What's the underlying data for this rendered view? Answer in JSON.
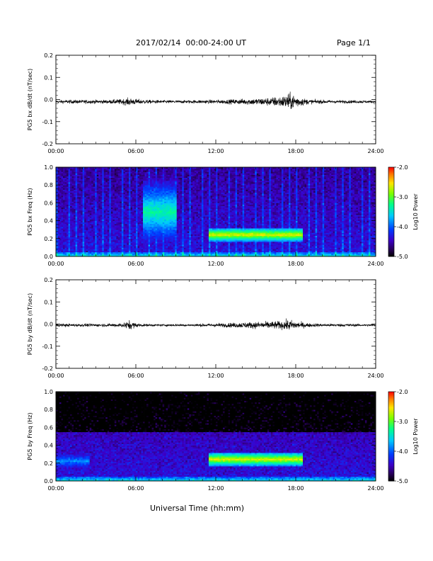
{
  "header": {
    "title": "2017/02/14  00:00-24:00 UT",
    "page": "Page 1/1"
  },
  "footer": {
    "xlabel": "Universal Time (hh:mm)"
  },
  "chart_data": [
    {
      "type": "line",
      "ylabel": "PG5 bx dB/dt (nT/sec)",
      "xlim": [
        0,
        24
      ],
      "ylim": [
        -0.2,
        0.2
      ],
      "x_tick_labels": [
        "00:00",
        "06:00",
        "12:00",
        "18:00",
        "24:00"
      ],
      "y_tick_labels": [
        "-0.2",
        "-0.1",
        "0.0",
        "0.1",
        "0.2"
      ],
      "series": [
        {
          "x": [
            0,
            1,
            2,
            3,
            4,
            5,
            5.5,
            6,
            6.5,
            7,
            8,
            9,
            10,
            11,
            12,
            13,
            14,
            15,
            16,
            17,
            17.5,
            18,
            18.5,
            19,
            20,
            21,
            22,
            23,
            24
          ],
          "envelope": [
            0.008,
            0.01,
            0.01,
            0.01,
            0.01,
            0.015,
            0.02,
            0.015,
            0.012,
            0.01,
            0.008,
            0.008,
            0.008,
            0.01,
            0.01,
            0.012,
            0.015,
            0.018,
            0.022,
            0.03,
            0.045,
            0.035,
            0.02,
            0.012,
            0.01,
            0.008,
            0.008,
            0.008,
            0.006
          ],
          "baseline": -0.01
        }
      ]
    },
    {
      "type": "heatmap",
      "ylabel": "PG5 bx Freq (Hz)",
      "xlim": [
        0,
        24
      ],
      "ylim": [
        0.0,
        1.0
      ],
      "x_tick_labels": [
        "00:00",
        "06:00",
        "12:00",
        "18:00",
        "24:00"
      ],
      "y_tick_labels": [
        "0.0",
        "0.2",
        "0.4",
        "0.6",
        "0.8",
        "1.0"
      ],
      "colorbar": {
        "label": "Log10 Power",
        "range": [
          -5.0,
          -2.0
        ],
        "tick_labels": [
          "-2.0",
          "-3.0",
          "-4.0",
          "-5.0"
        ]
      },
      "features": [
        {
          "desc": "broadband noise",
          "t": [
            6.5,
            9.0
          ],
          "f": [
            0.0,
            1.0
          ],
          "level": -3.3
        },
        {
          "desc": "Pc1 band",
          "t": [
            11.5,
            18.5
          ],
          "f": [
            0.17,
            0.32
          ],
          "level": -2.6
        },
        {
          "desc": "periodic vertical stripes",
          "t": [
            0,
            24
          ],
          "period_h": 0.5,
          "level": -3.8
        }
      ]
    },
    {
      "type": "line",
      "ylabel": "PG5 by dB/dt (nT/sec)",
      "xlim": [
        0,
        24
      ],
      "ylim": [
        -0.2,
        0.2
      ],
      "x_tick_labels": [
        "00:00",
        "06:00",
        "12:00",
        "18:00",
        "24:00"
      ],
      "y_tick_labels": [
        "-0.2",
        "-0.1",
        "0.0",
        "0.1",
        "0.2"
      ],
      "series": [
        {
          "x": [
            0,
            1,
            2,
            3,
            4,
            5,
            5.5,
            6,
            6.5,
            7,
            8,
            9,
            10,
            11,
            12,
            13,
            14,
            15,
            16,
            17,
            17.5,
            18,
            18.5,
            19,
            20,
            21,
            22,
            23,
            24
          ],
          "envelope": [
            0.008,
            0.008,
            0.008,
            0.008,
            0.008,
            0.012,
            0.025,
            0.012,
            0.008,
            0.006,
            0.006,
            0.006,
            0.006,
            0.008,
            0.01,
            0.012,
            0.015,
            0.018,
            0.02,
            0.022,
            0.03,
            0.02,
            0.015,
            0.01,
            0.008,
            0.008,
            0.008,
            0.006,
            0.006
          ],
          "baseline": -0.005
        }
      ]
    },
    {
      "type": "heatmap",
      "ylabel": "PG5 by Freq (Hz)",
      "xlim": [
        0,
        24
      ],
      "ylim": [
        0.0,
        1.0
      ],
      "x_tick_labels": [
        "00:00",
        "06:00",
        "12:00",
        "18:00",
        "24:00"
      ],
      "y_tick_labels": [
        "0.0",
        "0.2",
        "0.4",
        "0.6",
        "0.8",
        "1.0"
      ],
      "colorbar": {
        "label": "Log10 Power",
        "range": [
          -5.0,
          -2.0
        ],
        "tick_labels": [
          "-2.0",
          "-3.0",
          "-4.0",
          "-5.0"
        ]
      },
      "features": [
        {
          "desc": "Pc1 band",
          "t": [
            11.5,
            18.5
          ],
          "f": [
            0.17,
            0.32
          ],
          "level": -2.6
        },
        {
          "desc": "low-frequency enhancement",
          "t": [
            0,
            2.5
          ],
          "f": [
            0.0,
            0.45
          ],
          "level": -3.8
        }
      ]
    }
  ]
}
